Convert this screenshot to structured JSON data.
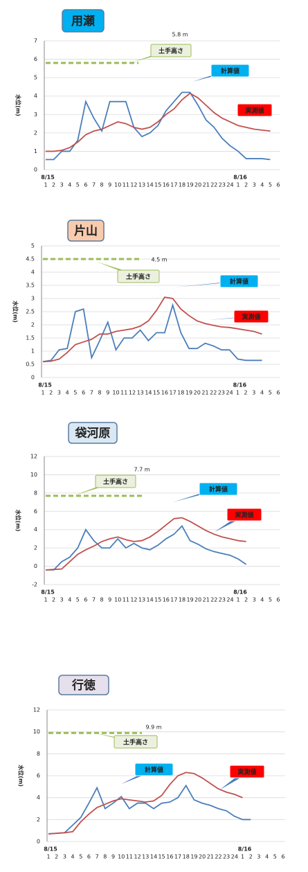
{
  "chart_data": [
    {
      "type": "line",
      "title": "用瀬",
      "title_color": "#00b0f0",
      "y_label": "水位(m)",
      "categories": [
        "1",
        "2",
        "3",
        "4",
        "5",
        "6",
        "7",
        "8",
        "9",
        "10",
        "11",
        "12",
        "13",
        "14",
        "15",
        "16",
        "17",
        "18",
        "19",
        "20",
        "21",
        "22",
        "23",
        "24",
        "1",
        "2",
        "3",
        "4",
        "5",
        "6"
      ],
      "date_labels": [
        "8/15",
        null,
        null,
        null,
        null,
        null,
        null,
        null,
        null,
        null,
        null,
        null,
        null,
        null,
        null,
        null,
        null,
        null,
        null,
        null,
        null,
        null,
        null,
        null,
        "8/16",
        null,
        null,
        null,
        null,
        null
      ],
      "ylim": [
        0,
        7
      ],
      "yticks": [
        0,
        1,
        2,
        3,
        4,
        5,
        6,
        7
      ],
      "grid": true,
      "levee": {
        "name": "土手高さ",
        "value": 5.8,
        "label": "5.8 m",
        "color": "#9bbb59"
      },
      "series": [
        {
          "name": "計算値",
          "color": "#4a7ebb",
          "callout_color": "#00b0f0",
          "values": [
            0.55,
            0.55,
            1.0,
            1.0,
            1.6,
            3.7,
            2.8,
            2.1,
            3.7,
            3.7,
            3.7,
            2.3,
            1.8,
            2.0,
            2.4,
            3.2,
            3.7,
            4.2,
            4.2,
            3.5,
            2.7,
            2.3,
            1.7,
            1.3,
            1.0,
            0.6,
            0.6,
            0.6,
            0.55,
            null
          ]
        },
        {
          "name": "実測値",
          "color": "#c0504d",
          "callout_color": "#ff0000",
          "values": [
            1.0,
            1.0,
            1.05,
            1.2,
            1.5,
            1.9,
            2.1,
            2.2,
            2.4,
            2.6,
            2.5,
            2.3,
            2.2,
            2.3,
            2.6,
            3.0,
            3.3,
            3.8,
            4.15,
            3.9,
            3.5,
            3.1,
            2.8,
            2.6,
            2.4,
            2.3,
            2.2,
            2.15,
            2.1,
            null
          ]
        }
      ]
    },
    {
      "type": "line",
      "title": "片山",
      "title_color": "#f8cbad",
      "y_label": "水位(m)",
      "categories": [
        "1",
        "2",
        "3",
        "4",
        "5",
        "6",
        "7",
        "8",
        "9",
        "10",
        "11",
        "12",
        "13",
        "14",
        "15",
        "16",
        "17",
        "18",
        "19",
        "20",
        "21",
        "22",
        "23",
        "24",
        "1",
        "2",
        "3",
        "4",
        "5",
        "6"
      ],
      "date_labels": [
        "8/15",
        null,
        null,
        null,
        null,
        null,
        null,
        null,
        null,
        null,
        null,
        null,
        null,
        null,
        null,
        null,
        null,
        null,
        null,
        null,
        null,
        null,
        null,
        null,
        "8/16",
        null,
        null,
        null,
        null,
        null
      ],
      "ylim": [
        0,
        5
      ],
      "yticks": [
        0,
        0.5,
        1,
        1.5,
        2,
        2.5,
        3,
        3.5,
        4,
        4.5,
        5
      ],
      "grid": true,
      "levee": {
        "name": "土手高さ",
        "value": 4.5,
        "label": "4.5 m",
        "color": "#9bbb59"
      },
      "series": [
        {
          "name": "計算値",
          "color": "#4a7ebb",
          "callout_color": "#00b0f0",
          "values": [
            0.6,
            0.65,
            1.05,
            1.1,
            2.5,
            2.6,
            0.75,
            1.4,
            2.1,
            1.05,
            1.5,
            1.5,
            1.8,
            1.4,
            1.7,
            1.7,
            2.75,
            1.7,
            1.1,
            1.1,
            1.3,
            1.2,
            1.05,
            1.05,
            0.7,
            0.65,
            0.65,
            0.65,
            null,
            null
          ]
        },
        {
          "name": "実測値",
          "color": "#c0504d",
          "callout_color": "#ff0000",
          "values": [
            0.6,
            0.62,
            0.7,
            0.95,
            1.25,
            1.35,
            1.45,
            1.65,
            1.65,
            1.75,
            1.8,
            1.85,
            1.95,
            2.15,
            2.55,
            3.05,
            3.0,
            2.6,
            2.35,
            2.15,
            2.05,
            1.98,
            1.92,
            1.9,
            1.85,
            1.8,
            1.75,
            1.65,
            null,
            null
          ]
        }
      ]
    },
    {
      "type": "line",
      "title": "袋河原",
      "title_color": "#dae8f4",
      "y_label": "水位(m)",
      "categories": [
        "1",
        "2",
        "3",
        "4",
        "5",
        "6",
        "7",
        "8",
        "9",
        "10",
        "11",
        "12",
        "13",
        "14",
        "15",
        "16",
        "17",
        "18",
        "19",
        "20",
        "21",
        "22",
        "23",
        "24",
        "1",
        "2",
        "3",
        "4",
        "5",
        "6"
      ],
      "date_labels": [
        "8/15",
        null,
        null,
        null,
        null,
        null,
        null,
        null,
        null,
        null,
        null,
        null,
        null,
        null,
        null,
        null,
        null,
        null,
        null,
        null,
        null,
        null,
        null,
        null,
        "8/16",
        null,
        null,
        null,
        null,
        null
      ],
      "ylim": [
        -2,
        12
      ],
      "yticks": [
        -2,
        0,
        2,
        4,
        6,
        8,
        10,
        12
      ],
      "grid": true,
      "levee": {
        "name": "土手高さ",
        "value": 7.7,
        "label": "7.7 m",
        "color": "#9bbb59"
      },
      "series": [
        {
          "name": "計算値",
          "color": "#4a7ebb",
          "callout_color": "#00b0f0",
          "values": [
            -0.4,
            -0.4,
            0.5,
            1.0,
            2.0,
            4.0,
            2.8,
            2.0,
            2.0,
            3.0,
            2.0,
            2.5,
            2.0,
            1.8,
            2.3,
            3.0,
            3.5,
            4.4,
            2.8,
            2.4,
            1.9,
            1.6,
            1.4,
            1.2,
            0.8,
            0.2,
            null,
            null,
            null,
            null
          ]
        },
        {
          "name": "実測値",
          "color": "#c0504d",
          "callout_color": "#ff0000",
          "values": [
            -0.4,
            -0.35,
            -0.3,
            0.5,
            1.3,
            1.8,
            2.2,
            2.7,
            3.0,
            3.2,
            2.9,
            2.7,
            2.8,
            3.2,
            3.8,
            4.5,
            5.2,
            5.3,
            4.9,
            4.4,
            3.9,
            3.5,
            3.2,
            3.0,
            2.8,
            2.7,
            null,
            null,
            null,
            null
          ]
        }
      ]
    },
    {
      "type": "line",
      "title": "行徳",
      "title_color": "#e6e0ec",
      "y_label": "水位(m)",
      "categories": [
        "1",
        "2",
        "3",
        "4",
        "5",
        "6",
        "7",
        "8",
        "9",
        "10",
        "11",
        "12",
        "13",
        "14",
        "15",
        "16",
        "17",
        "18",
        "19",
        "20",
        "21",
        "22",
        "23",
        "24",
        "1",
        "2",
        "3",
        "4",
        "5",
        "6"
      ],
      "date_labels": [
        "8/15",
        null,
        null,
        null,
        null,
        null,
        null,
        null,
        null,
        null,
        null,
        null,
        null,
        null,
        null,
        null,
        null,
        null,
        null,
        null,
        null,
        null,
        null,
        null,
        "8/16",
        null,
        null,
        null,
        null,
        null
      ],
      "ylim": [
        0,
        12
      ],
      "yticks": [
        0,
        2,
        4,
        6,
        8,
        10,
        12
      ],
      "grid": true,
      "levee": {
        "name": "土手高さ",
        "value": 9.9,
        "label": "9.9 m",
        "color": "#9bbb59"
      },
      "series": [
        {
          "name": "計算値",
          "color": "#4a7ebb",
          "callout_color": "#00b0f0",
          "values": [
            0.7,
            0.75,
            0.8,
            1.5,
            2.2,
            3.5,
            4.9,
            3.0,
            3.5,
            4.1,
            3.0,
            3.5,
            3.5,
            3.0,
            3.5,
            3.6,
            4.0,
            5.1,
            3.8,
            3.5,
            3.3,
            3.0,
            2.8,
            2.3,
            2.0,
            2.0,
            null,
            null,
            null,
            null
          ]
        },
        {
          "name": "実測値",
          "color": "#c0504d",
          "callout_color": "#ff0000",
          "values": [
            0.7,
            0.75,
            0.8,
            0.9,
            1.8,
            2.5,
            3.1,
            3.4,
            3.7,
            3.9,
            3.8,
            3.7,
            3.6,
            3.7,
            4.2,
            5.2,
            6.0,
            6.3,
            6.2,
            5.8,
            5.3,
            4.8,
            4.5,
            4.3,
            4.0,
            null,
            null,
            null,
            null,
            null
          ]
        }
      ]
    }
  ]
}
